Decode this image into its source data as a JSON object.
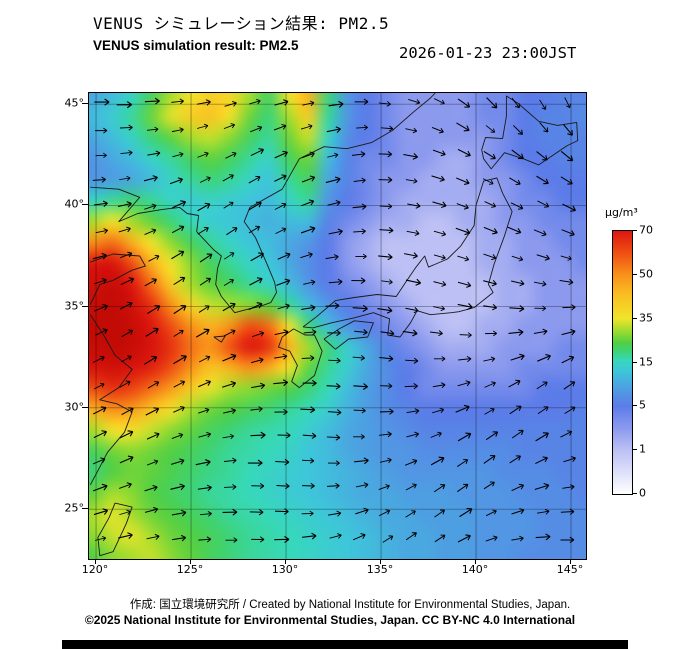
{
  "header": {
    "title_jp": "VENUS シミュレーション結果: PM2.5",
    "title_en": "VENUS simulation result: PM2.5",
    "timestamp": "2026-01-23 23:00JST"
  },
  "axes": {
    "lat_values": [
      45,
      40,
      35,
      30,
      25
    ],
    "lon_values": [
      120,
      125,
      130,
      135,
      140,
      145
    ],
    "degree_symbol": "°"
  },
  "colorbar": {
    "unit": "µg/m³",
    "tick_labels_top_down": [
      "70",
      "50",
      "35",
      "15",
      "5",
      "1",
      "0"
    ]
  },
  "footer": {
    "line1": "作成: 国立環境研究所 / Created by National Institute for Environmental Studies, Japan.",
    "line2": "©2025 National Institute for Environmental Studies, Japan. CC BY-NC 4.0 International"
  },
  "chart_data": {
    "type": "heatmap",
    "variable": "PM2.5 surface concentration (VENUS simulation)",
    "unit": "µg/m³",
    "lon_range": [
      119.6,
      145.8
    ],
    "lat_range": [
      22.5,
      45.6
    ],
    "levels": [
      0,
      1,
      5,
      15,
      35,
      50,
      70
    ],
    "colormap_stops": [
      {
        "v": 0,
        "c": "#ffffff"
      },
      {
        "v": 1,
        "c": "#bcc0f4"
      },
      {
        "v": 3,
        "c": "#8c9aee"
      },
      {
        "v": 5,
        "c": "#5c7ce8"
      },
      {
        "v": 9,
        "c": "#4e9ee2"
      },
      {
        "v": 13,
        "c": "#3ec6da"
      },
      {
        "v": 16,
        "c": "#37d8bb"
      },
      {
        "v": 20,
        "c": "#3ed378"
      },
      {
        "v": 24,
        "c": "#52cf44"
      },
      {
        "v": 29,
        "c": "#97dc2f"
      },
      {
        "v": 35,
        "c": "#f1e42b"
      },
      {
        "v": 43,
        "c": "#f9bf22"
      },
      {
        "v": 50,
        "c": "#f8921a"
      },
      {
        "v": 59,
        "c": "#f05514"
      },
      {
        "v": 70,
        "c": "#dd170f"
      },
      {
        "v": 85,
        "c": "#b50500"
      }
    ],
    "grid_lon_start": 120,
    "grid_lon_step": 1,
    "grid_lat_start": 45,
    "grid_lat_step": -1,
    "grid": [
      [
        10,
        12,
        15,
        22,
        30,
        35,
        40,
        38,
        30,
        22,
        35,
        45,
        20,
        8,
        5,
        4,
        3,
        3,
        3,
        3,
        4,
        4,
        5,
        5,
        6,
        6
      ],
      [
        12,
        14,
        18,
        26,
        34,
        40,
        42,
        36,
        26,
        20,
        30,
        40,
        18,
        8,
        5,
        4,
        3,
        3,
        3,
        3,
        4,
        4,
        5,
        6,
        6,
        7
      ],
      [
        10,
        12,
        15,
        20,
        25,
        30,
        32,
        28,
        22,
        18,
        26,
        32,
        15,
        7,
        5,
        4,
        3,
        3,
        3,
        3,
        3,
        4,
        5,
        6,
        6,
        6
      ],
      [
        8,
        10,
        12,
        15,
        18,
        22,
        25,
        22,
        18,
        15,
        22,
        26,
        12,
        6,
        4,
        4,
        3,
        3,
        2,
        2,
        3,
        4,
        5,
        5,
        6,
        6
      ],
      [
        8,
        9,
        10,
        12,
        15,
        18,
        20,
        18,
        15,
        13,
        18,
        22,
        10,
        6,
        4,
        3,
        3,
        2,
        2,
        2,
        3,
        3,
        4,
        5,
        5,
        5
      ],
      [
        15,
        18,
        20,
        18,
        15,
        14,
        15,
        14,
        13,
        12,
        15,
        18,
        8,
        5,
        4,
        3,
        2,
        2,
        2,
        2,
        2,
        3,
        4,
        4,
        5,
        5
      ],
      [
        30,
        35,
        30,
        25,
        20,
        16,
        14,
        13,
        12,
        11,
        12,
        12,
        6,
        4,
        3,
        2,
        2,
        1,
        1,
        2,
        2,
        3,
        3,
        4,
        4,
        4
      ],
      [
        50,
        55,
        45,
        35,
        28,
        22,
        18,
        15,
        13,
        12,
        10,
        8,
        5,
        3,
        2,
        1,
        1,
        1,
        1,
        1,
        2,
        2,
        3,
        3,
        4,
        4
      ],
      [
        70,
        72,
        60,
        45,
        35,
        28,
        22,
        18,
        15,
        13,
        10,
        7,
        5,
        3,
        2,
        1,
        1,
        1,
        1,
        1,
        2,
        2,
        3,
        3,
        3,
        4
      ],
      [
        75,
        78,
        70,
        55,
        40,
        30,
        25,
        22,
        18,
        15,
        12,
        8,
        5,
        4,
        3,
        2,
        1,
        1,
        1,
        1,
        1,
        2,
        2,
        3,
        3,
        3
      ],
      [
        78,
        80,
        75,
        65,
        50,
        38,
        32,
        30,
        28,
        25,
        18,
        12,
        8,
        5,
        4,
        3,
        2,
        1,
        1,
        1,
        1,
        2,
        2,
        3,
        3,
        3
      ],
      [
        80,
        80,
        78,
        70,
        60,
        50,
        45,
        50,
        60,
        55,
        35,
        20,
        12,
        8,
        5,
        4,
        3,
        2,
        1,
        1,
        2,
        2,
        3,
        3,
        3,
        3
      ],
      [
        78,
        80,
        78,
        72,
        65,
        55,
        50,
        60,
        70,
        65,
        45,
        30,
        20,
        14,
        10,
        6,
        4,
        3,
        2,
        2,
        2,
        3,
        3,
        3,
        4,
        4
      ],
      [
        72,
        75,
        72,
        68,
        60,
        50,
        42,
        45,
        50,
        45,
        35,
        25,
        18,
        14,
        10,
        7,
        5,
        4,
        3,
        3,
        3,
        3,
        4,
        4,
        4,
        4
      ],
      [
        60,
        65,
        62,
        55,
        48,
        40,
        34,
        30,
        28,
        26,
        24,
        20,
        16,
        12,
        9,
        7,
        5,
        4,
        4,
        4,
        4,
        4,
        4,
        5,
        5,
        5
      ],
      [
        45,
        50,
        48,
        42,
        36,
        30,
        26,
        24,
        22,
        20,
        18,
        16,
        14,
        11,
        9,
        7,
        6,
        5,
        5,
        5,
        5,
        5,
        5,
        5,
        5,
        6
      ],
      [
        30,
        35,
        36,
        32,
        28,
        25,
        22,
        20,
        18,
        17,
        16,
        14,
        12,
        10,
        9,
        8,
        7,
        6,
        6,
        6,
        6,
        6,
        6,
        6,
        6,
        6
      ],
      [
        22,
        26,
        28,
        26,
        24,
        22,
        20,
        18,
        17,
        16,
        15,
        13,
        12,
        10,
        9,
        8,
        8,
        7,
        7,
        7,
        7,
        7,
        6,
        6,
        6,
        6
      ],
      [
        20,
        24,
        26,
        25,
        23,
        21,
        19,
        18,
        16,
        15,
        14,
        13,
        12,
        11,
        10,
        9,
        8,
        8,
        8,
        8,
        8,
        7,
        7,
        7,
        6,
        6
      ],
      [
        25,
        30,
        28,
        24,
        22,
        20,
        18,
        17,
        16,
        15,
        14,
        13,
        12,
        11,
        10,
        10,
        9,
        9,
        9,
        8,
        8,
        8,
        7,
        7,
        7,
        6
      ],
      [
        30,
        34,
        30,
        26,
        24,
        22,
        20,
        18,
        17,
        16,
        15,
        14,
        13,
        12,
        11,
        10,
        10,
        9,
        9,
        9,
        8,
        8,
        8,
        7,
        7,
        7
      ],
      [
        28,
        32,
        34,
        30,
        26,
        24,
        22,
        20,
        18,
        17,
        16,
        15,
        14,
        13,
        12,
        11,
        10,
        10,
        9,
        9,
        8,
        8,
        8,
        7,
        7,
        7
      ],
      [
        24,
        28,
        30,
        32,
        28,
        25,
        22,
        20,
        18,
        17,
        16,
        15,
        14,
        13,
        12,
        11,
        10,
        10,
        9,
        9,
        8,
        8,
        7,
        7,
        7,
        7
      ]
    ],
    "wind_overlay": {
      "style": "black vector arrows",
      "color": "#000000",
      "grid_spacing_px": 26,
      "meaning": "wind direction field at arrow locations"
    },
    "legend_position": "right",
    "grid_lines": "5-degree graticule, on"
  }
}
